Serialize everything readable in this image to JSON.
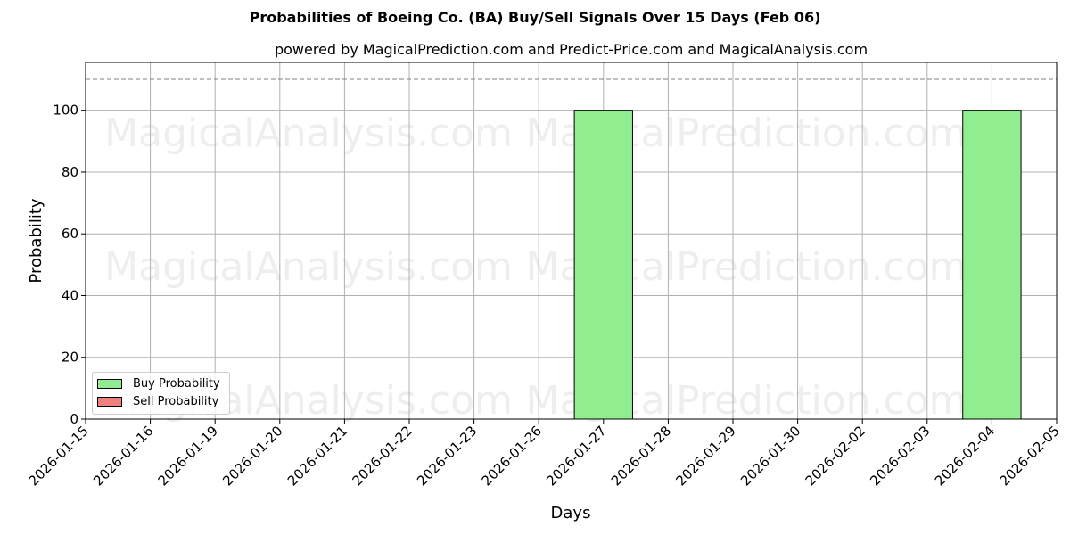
{
  "chart_data": {
    "type": "bar",
    "title": "Probabilities of Boeing Co. (BA) Buy/Sell Signals Over 15 Days (Feb 06)",
    "subtitle": "powered by MagicalPrediction.com and Predict-Price.com and MagicalAnalysis.com",
    "xlabel": "Days",
    "ylabel": "Probability",
    "categories": [
      "2026-01-15",
      "2026-01-16",
      "2026-01-19",
      "2026-01-20",
      "2026-01-21",
      "2026-01-22",
      "2026-01-23",
      "2026-01-26",
      "2026-01-27",
      "2026-01-28",
      "2026-01-29",
      "2026-01-30",
      "2026-02-02",
      "2026-02-03",
      "2026-02-04",
      "2026-02-05"
    ],
    "series": [
      {
        "name": "Buy Probability",
        "color": "#90ee90",
        "values": [
          0,
          0,
          0,
          0,
          0,
          0,
          0,
          0,
          100,
          0,
          0,
          0,
          0,
          0,
          100,
          0
        ]
      },
      {
        "name": "Sell Probability",
        "color": "#f08080",
        "values": [
          0,
          0,
          0,
          0,
          0,
          0,
          0,
          0,
          0,
          0,
          0,
          0,
          0,
          0,
          0,
          0
        ]
      }
    ],
    "yticks": [
      0,
      20,
      40,
      60,
      80,
      100
    ],
    "ylim": [
      0,
      115.5
    ],
    "reference_line": {
      "y": 110,
      "style": "dashed",
      "color": "#808080"
    },
    "grid": true,
    "legend_position": "lower left",
    "watermarks": [
      "MagicalAnalysis.com",
      "MagicalPrediction.com"
    ]
  },
  "header": {
    "title": "Probabilities of Boeing Co. (BA) Buy/Sell Signals Over 15 Days (Feb 06)",
    "subtitle": "powered by MagicalPrediction.com and Predict-Price.com and MagicalAnalysis.com"
  },
  "axes": {
    "xlabel": "Days",
    "ylabel": "Probability"
  },
  "legend": {
    "items": [
      {
        "label": "Buy Probability",
        "color": "#90ee90"
      },
      {
        "label": "Sell Probability",
        "color": "#f08080"
      }
    ]
  }
}
